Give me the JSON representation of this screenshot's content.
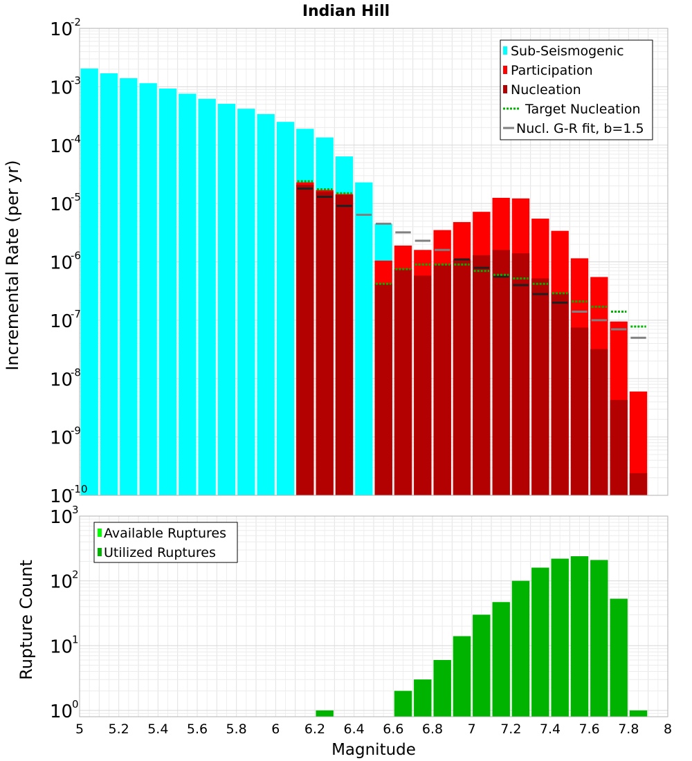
{
  "chart_data": [
    {
      "type": "bar",
      "title": "Indian Hill",
      "xlabel": "",
      "ylabel": "Incremental Rate (per yr)",
      "yscale": "log",
      "xlim": [
        5,
        8
      ],
      "ylim": [
        1e-10,
        0.01
      ],
      "grid": true,
      "legend_position": "top-right",
      "x": [
        5.05,
        5.15,
        5.25,
        5.35,
        5.45,
        5.55,
        5.65,
        5.75,
        5.85,
        5.95,
        6.05,
        6.15,
        6.25,
        6.35,
        6.45,
        6.55,
        6.65,
        6.75,
        6.85,
        6.95,
        7.05,
        7.15,
        7.25,
        7.35,
        7.45,
        7.55,
        7.65,
        7.75,
        7.85
      ],
      "series": [
        {
          "name": "Sub-Seismogenic",
          "color": "#00ffff",
          "mark": "bar",
          "values": [
            0.00205,
            0.0017,
            0.0014,
            0.00115,
            0.00093,
            0.00076,
            0.00062,
            0.00051,
            0.00042,
            0.00034,
            0.00025,
            0.00019,
            0.000135,
            6.4e-05,
            2.3e-05,
            4.5e-06,
            null,
            null,
            null,
            null,
            null,
            null,
            null,
            null,
            null,
            null,
            null,
            null,
            null
          ]
        },
        {
          "name": "Participation",
          "color": "#ff0000",
          "mark": "bar",
          "values": [
            null,
            null,
            null,
            null,
            null,
            null,
            null,
            null,
            null,
            null,
            null,
            2.3e-05,
            1.7e-05,
            1.45e-05,
            null,
            1.05e-06,
            1.9e-06,
            1.6e-06,
            3.5e-06,
            4.8e-06,
            7.2e-06,
            1.25e-05,
            1.22e-05,
            5.5e-06,
            3.4e-06,
            1.15e-06,
            5.5e-07,
            9.5e-08,
            6e-09
          ]
        },
        {
          "name": "Nucleation",
          "color": "#b30000",
          "mark": "bar",
          "values": [
            null,
            null,
            null,
            null,
            null,
            null,
            null,
            null,
            null,
            null,
            null,
            2.1e-05,
            1.6e-05,
            1.4e-05,
            null,
            4.2e-07,
            7.5e-07,
            5.8e-07,
            9e-07,
            1.1e-06,
            1.3e-06,
            1.6e-06,
            1.4e-06,
            5.2e-07,
            2.9e-07,
            7.5e-08,
            3.2e-08,
            4.3e-09,
            2.4e-10
          ]
        },
        {
          "name": "Target Nucleation",
          "color": "#00b300",
          "mark": "dotted-step",
          "values": [
            null,
            null,
            null,
            null,
            null,
            null,
            null,
            null,
            null,
            null,
            null,
            2.4e-05,
            1.75e-05,
            1.5e-05,
            null,
            4.2e-07,
            7.5e-07,
            9e-07,
            9e-07,
            9e-07,
            7e-07,
            6e-07,
            5.2e-07,
            4.2e-07,
            2.9e-07,
            2.1e-07,
            1.7e-07,
            1.4e-07,
            7.8e-08
          ]
        },
        {
          "name": "Nucl. G-R fit, b=1.5",
          "color": "#808080",
          "mark": "step",
          "values": [
            null,
            null,
            null,
            null,
            null,
            null,
            null,
            null,
            null,
            null,
            null,
            1.8e-05,
            1.3e-05,
            9.1e-06,
            6.4e-06,
            4.5e-06,
            3.2e-06,
            2.3e-06,
            1.6e-06,
            1.1e-06,
            7.9e-07,
            5.6e-07,
            4e-07,
            2.8e-07,
            2e-07,
            1.4e-07,
            1e-07,
            7e-08,
            5e-08
          ]
        }
      ]
    },
    {
      "type": "bar",
      "title": "",
      "xlabel": "Magnitude",
      "ylabel": "Rupture Count",
      "yscale": "log",
      "xlim": [
        5,
        8
      ],
      "ylim": [
        0.8,
        1000
      ],
      "grid": true,
      "legend_position": "top-left",
      "x": [
        6.25,
        6.65,
        6.75,
        6.85,
        6.95,
        7.05,
        7.15,
        7.25,
        7.35,
        7.45,
        7.55,
        7.65,
        7.75,
        7.85
      ],
      "series": [
        {
          "name": "Available Ruptures",
          "color": "#00ff00",
          "values": [
            1,
            2,
            3,
            6,
            14,
            30,
            47,
            100,
            160,
            220,
            240,
            210,
            53,
            1
          ]
        },
        {
          "name": "Utilized Ruptures",
          "color": "#00b300",
          "values": [
            1,
            2,
            3,
            6,
            14,
            30,
            47,
            100,
            160,
            220,
            240,
            210,
            53,
            1
          ]
        }
      ]
    }
  ],
  "top_yticks": [
    {
      "base": "10",
      "exp": "-10",
      "v": 1e-10
    },
    {
      "base": "10",
      "exp": "-9",
      "v": 1e-09
    },
    {
      "base": "10",
      "exp": "-8",
      "v": 1e-08
    },
    {
      "base": "10",
      "exp": "-7",
      "v": 1e-07
    },
    {
      "base": "10",
      "exp": "-6",
      "v": 1e-06
    },
    {
      "base": "10",
      "exp": "-5",
      "v": 1e-05
    },
    {
      "base": "10",
      "exp": "-4",
      "v": 0.0001
    },
    {
      "base": "10",
      "exp": "-3",
      "v": 0.001
    },
    {
      "base": "10",
      "exp": "-2",
      "v": 0.01
    }
  ],
  "bottom_yticks": [
    {
      "base": "10",
      "exp": "0",
      "v": 1
    },
    {
      "base": "10",
      "exp": "1",
      "v": 10
    },
    {
      "base": "10",
      "exp": "2",
      "v": 100
    },
    {
      "base": "10",
      "exp": "3",
      "v": 1000
    }
  ],
  "xticks": [
    "5",
    "5.2",
    "5.4",
    "5.6",
    "5.8",
    "6",
    "6.2",
    "6.4",
    "6.6",
    "6.8",
    "7",
    "7.2",
    "7.4",
    "7.6",
    "7.8",
    "8"
  ]
}
